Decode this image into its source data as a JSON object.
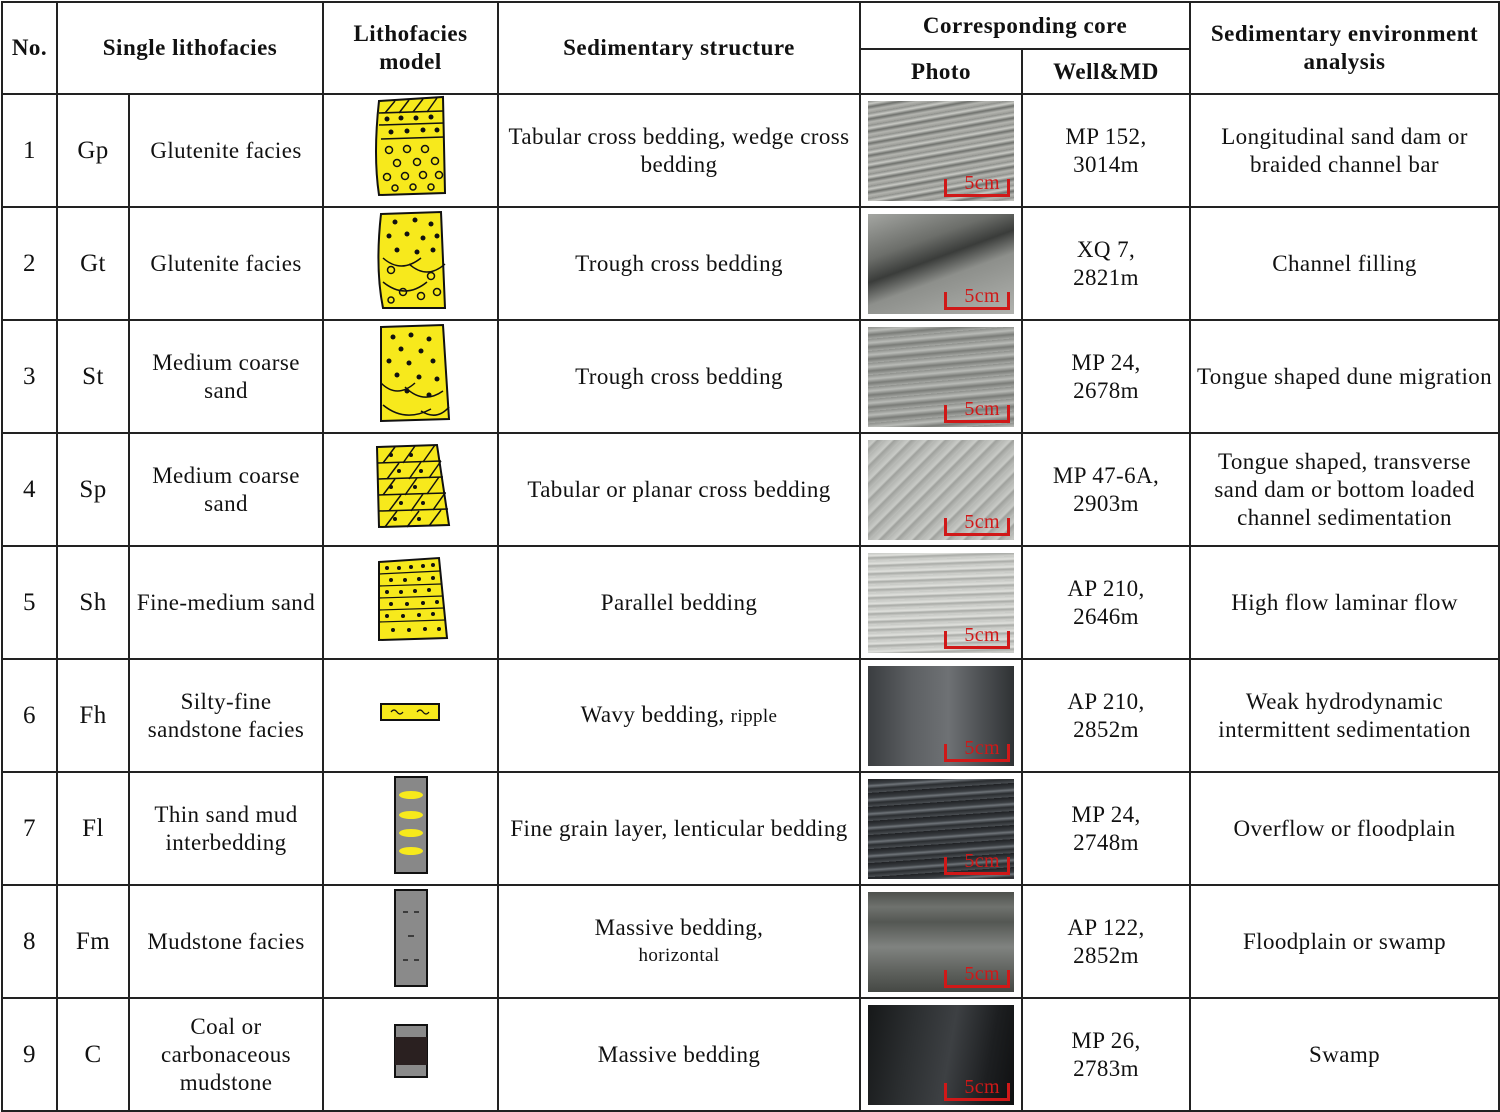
{
  "headers": {
    "no": "No.",
    "single_lithofacies": "Single lithofacies",
    "lithofacies_model": "Lithofacies model",
    "sedimentary_structure": "Sedimentary structure",
    "corresponding_core": "Corresponding core",
    "photo": "Photo",
    "well_md": "Well&MD",
    "environment": "Sedimentary environment analysis"
  },
  "scale_label": "5cm",
  "rows": [
    {
      "no": "1",
      "code": "Gp",
      "name": "Glutenite facies",
      "structure": "Tabular cross bedding, wedge cross bedding",
      "structure_sub": "",
      "well": "MP 152,",
      "md": "3014m",
      "environment": "Longitudinal sand dam or braided channel bar",
      "model_icon": "tabular-cross-gravel-icon",
      "photo_icon": "gray-gravel-core-icon"
    },
    {
      "no": "2",
      "code": "Gt",
      "name": "Glutenite facies",
      "structure": "Trough cross bedding",
      "structure_sub": "",
      "well": "XQ 7,",
      "md": "2821m",
      "environment": "Channel filling",
      "model_icon": "trough-cross-gravel-icon",
      "photo_icon": "broken-gray-core-icon"
    },
    {
      "no": "3",
      "code": "St",
      "name": "Medium coarse sand",
      "structure": "Trough cross bedding",
      "structure_sub": "",
      "well": "MP 24,",
      "md": "2678m",
      "environment": "Tongue shaped dune migration",
      "model_icon": "trough-cross-sand-icon",
      "photo_icon": "cross-bedded-sand-core-icon"
    },
    {
      "no": "4",
      "code": "Sp",
      "name": "Medium coarse sand",
      "structure": "Tabular or planar cross bedding",
      "structure_sub": "",
      "well": "MP 47-6A,",
      "md": "2903m",
      "environment": "Tongue shaped, transverse sand dam or bottom loaded channel sedimentation",
      "model_icon": "planar-cross-sand-icon",
      "photo_icon": "light-sand-core-icon"
    },
    {
      "no": "5",
      "code": "Sh",
      "name": "Fine-medium sand",
      "structure": "Parallel bedding",
      "structure_sub": "",
      "well": "AP 210,",
      "md": "2646m",
      "environment": "High flow laminar flow",
      "model_icon": "parallel-bedded-sand-icon",
      "photo_icon": "laminated-sand-core-icon"
    },
    {
      "no": "6",
      "code": "Fh",
      "name": "Silty-fine sandstone facies",
      "structure": "Wavy bedding,",
      "structure_sub": "ripple",
      "well": "AP 210,",
      "md": "2852m",
      "environment": "Weak hydrodynamic intermittent sedimentation",
      "model_icon": "wavy-silt-layer-icon",
      "photo_icon": "dark-silt-core-icon"
    },
    {
      "no": "7",
      "code": "Fl",
      "name": "Thin sand mud interbedding",
      "structure": "Fine grain layer, lenticular bedding",
      "structure_sub": "",
      "well": "MP 24,",
      "md": "2748m",
      "environment": "Overflow or floodplain",
      "model_icon": "lenticular-mud-icon",
      "photo_icon": "dark-banded-core-icon"
    },
    {
      "no": "8",
      "code": "Fm",
      "name": "Mudstone facies",
      "structure": "Massive bedding,",
      "structure_sub": "horizontal",
      "well": "AP 122,",
      "md": "2852m",
      "environment": "Floodplain or swamp",
      "model_icon": "mudstone-column-icon",
      "photo_icon": "gray-mudstone-core-icon"
    },
    {
      "no": "9",
      "code": "C",
      "name": "Coal or carbonaceous mudstone",
      "structure": "Massive bedding",
      "structure_sub": "",
      "well": "MP 26,",
      "md": "2783m",
      "environment": "Swamp",
      "model_icon": "coal-column-icon",
      "photo_icon": "black-coal-core-icon"
    }
  ]
}
